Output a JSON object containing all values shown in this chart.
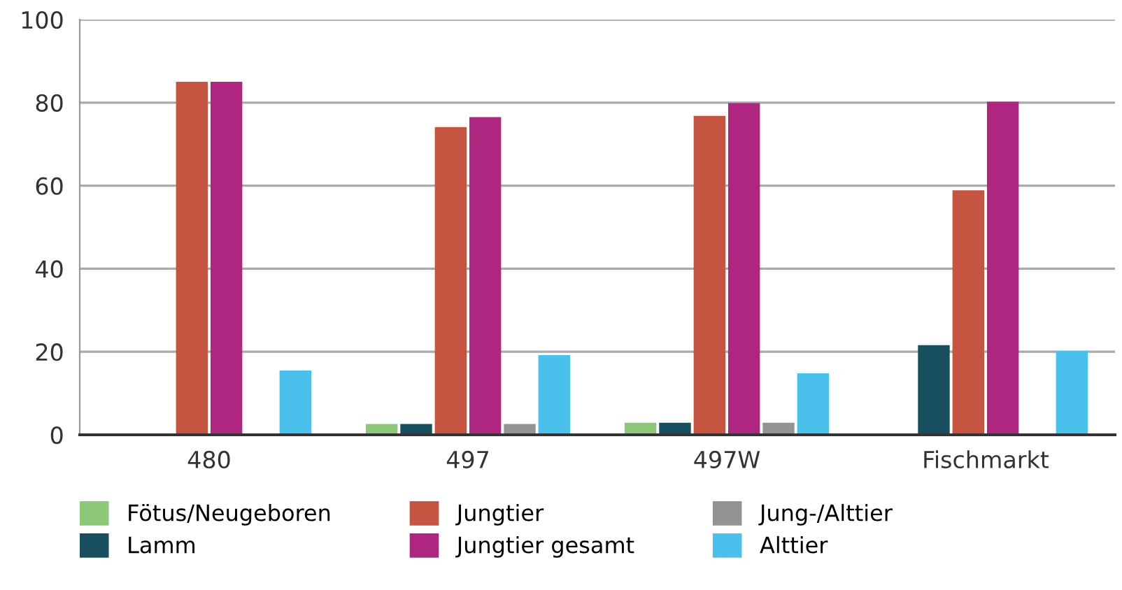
{
  "chart_data": {
    "type": "bar",
    "categories": [
      "480",
      "497",
      "497W",
      "Fischmarkt"
    ],
    "series": [
      {
        "name": "Fötus/Neugeboren",
        "color": "#8cc878",
        "values": [
          0,
          2.6,
          2.9,
          0
        ]
      },
      {
        "name": "Lamm",
        "color": "#174f5f",
        "values": [
          0,
          2.6,
          2.9,
          21.6
        ]
      },
      {
        "name": "Jungtier",
        "color": "#c55540",
        "values": [
          85,
          74.1,
          76.8,
          58.9
        ]
      },
      {
        "name": "Jungtier gesamt",
        "color": "#ae2680",
        "values": [
          85,
          76.5,
          79.9,
          80.2
        ]
      },
      {
        "name": "Jung-/Alttier",
        "color": "#939393",
        "values": [
          0,
          2.6,
          2.9,
          0
        ]
      },
      {
        "name": "Alttier",
        "color": "#4ac1ec",
        "values": [
          15.5,
          19.2,
          14.8,
          20.2
        ]
      }
    ],
    "ylim": [
      0,
      100
    ],
    "yticks": [
      0,
      20,
      40,
      60,
      80,
      100
    ],
    "grid": "y",
    "legend": "bottom"
  }
}
